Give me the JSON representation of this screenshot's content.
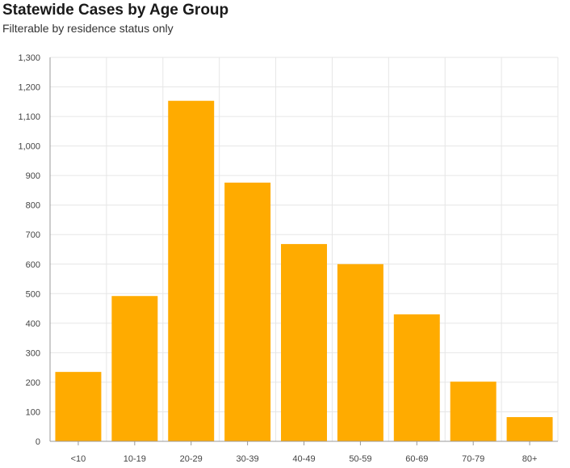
{
  "header": {
    "title": "Statewide Cases by Age Group",
    "subtitle": "Filterable by residence status only"
  },
  "chart_data": {
    "type": "bar",
    "title": "Statewide Cases by Age Group",
    "subtitle": "Filterable by residence status only",
    "xlabel": "",
    "ylabel": "",
    "categories": [
      "<10",
      "10-19",
      "20-29",
      "30-39",
      "40-49",
      "50-59",
      "60-69",
      "70-79",
      "80+"
    ],
    "values": [
      235,
      492,
      1153,
      876,
      668,
      600,
      430,
      202,
      82
    ],
    "ylim": [
      0,
      1300
    ],
    "yticks": [
      0,
      100,
      200,
      300,
      400,
      500,
      600,
      700,
      800,
      900,
      1000,
      1100,
      1200,
      1300
    ],
    "ytick_labels": [
      "0",
      "100",
      "200",
      "300",
      "400",
      "500",
      "600",
      "700",
      "800",
      "900",
      "1,000",
      "1,100",
      "1,200",
      "1,300"
    ],
    "grid": true,
    "colors": {
      "bar": "#FFAB00",
      "grid": "#e6e6e6",
      "axis": "#999999"
    }
  }
}
